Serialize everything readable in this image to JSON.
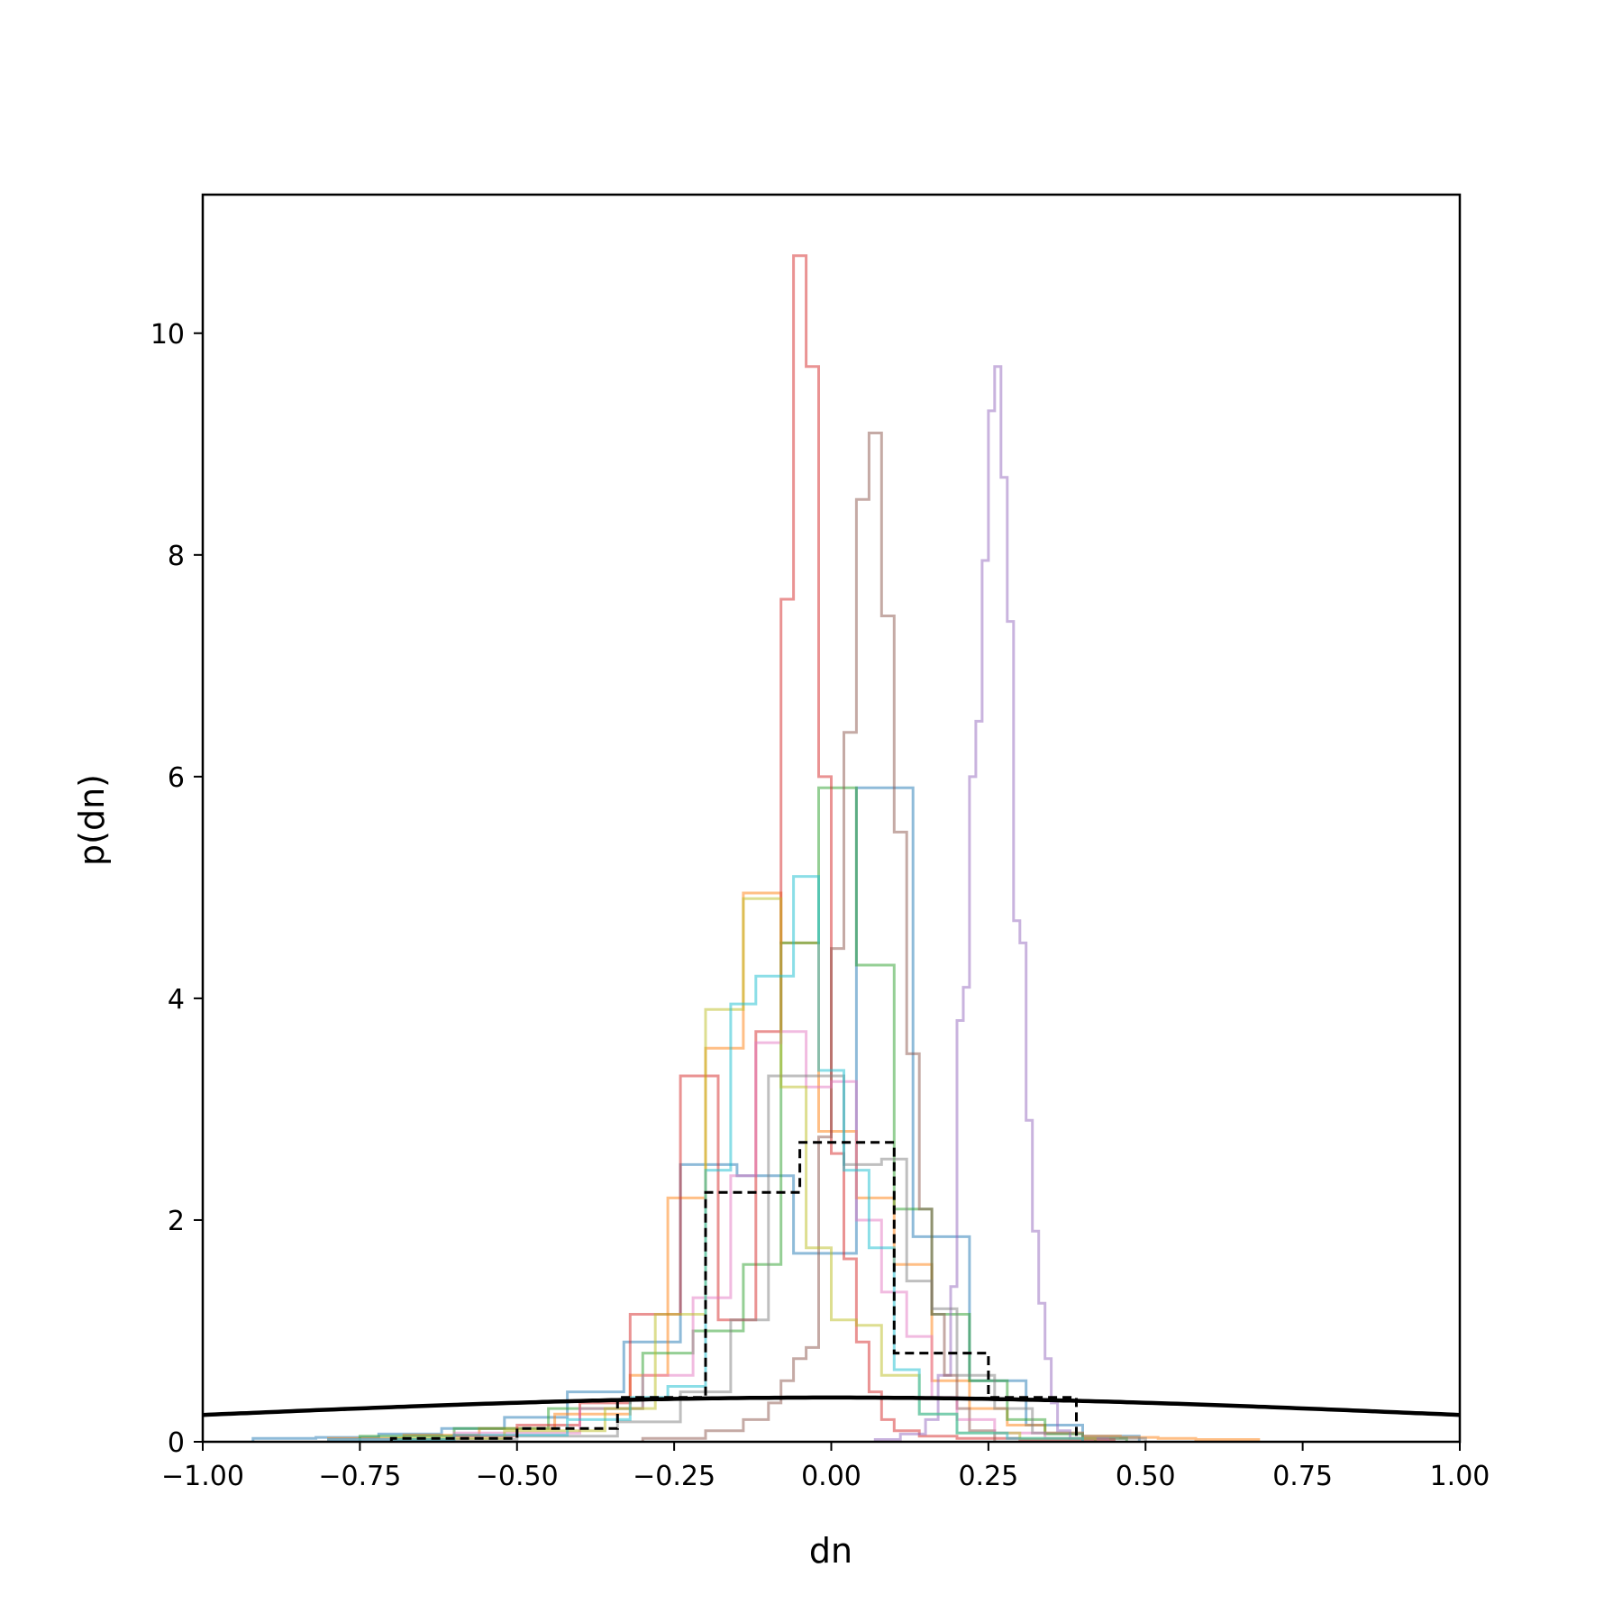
{
  "chart_data": {
    "type": "histogram",
    "xlabel": "dn",
    "ylabel": "p(dn)",
    "xlim": [
      -1.0,
      1.0
    ],
    "ylim": [
      0,
      11.25
    ],
    "grid": false,
    "legend": "none",
    "x_ticks": [
      "−1.00",
      "−0.75",
      "−0.50",
      "−0.25",
      "0.00",
      "0.25",
      "0.50",
      "0.75",
      "1.00"
    ],
    "x_tick_values": [
      -1.0,
      -0.75,
      -0.5,
      -0.25,
      0.0,
      0.25,
      0.5,
      0.75,
      1.0
    ],
    "y_ticks": [
      "0",
      "2",
      "4",
      "6",
      "8",
      "10"
    ],
    "y_tick_values": [
      0,
      2,
      4,
      6,
      8,
      10
    ],
    "series": [
      {
        "color": "#1f77b4",
        "edges": [
          -0.92,
          -0.82,
          -0.72,
          -0.62,
          -0.52,
          -0.42,
          -0.33,
          -0.24,
          -0.15,
          -0.06,
          0.04,
          0.13,
          0.22,
          0.31,
          0.4,
          0.49
        ],
        "heights": [
          0.03,
          0.04,
          0.07,
          0.12,
          0.22,
          0.45,
          0.9,
          2.5,
          2.4,
          1.7,
          5.9,
          1.85,
          0.55,
          0.15,
          0.05
        ]
      },
      {
        "color": "#ff7f0e",
        "edges": [
          -0.8,
          -0.68,
          -0.56,
          -0.44,
          -0.32,
          -0.26,
          -0.2,
          -0.14,
          -0.08,
          -0.02,
          0.04,
          0.1,
          0.16,
          0.22,
          0.28,
          0.34,
          0.4,
          0.46,
          0.52,
          0.58,
          0.68
        ],
        "heights": [
          0.03,
          0.06,
          0.12,
          0.25,
          0.6,
          2.2,
          3.55,
          4.95,
          4.5,
          2.8,
          2.2,
          1.6,
          0.55,
          0.3,
          0.15,
          0.08,
          0.05,
          0.04,
          0.03,
          0.02
        ]
      },
      {
        "color": "#2ca02c",
        "edges": [
          -0.75,
          -0.6,
          -0.45,
          -0.3,
          -0.22,
          -0.14,
          -0.08,
          -0.02,
          0.04,
          0.1,
          0.16,
          0.22,
          0.28,
          0.34,
          0.4,
          0.47
        ],
        "heights": [
          0.05,
          0.12,
          0.3,
          0.8,
          1.0,
          1.6,
          4.5,
          5.9,
          4.3,
          2.1,
          1.15,
          0.55,
          0.2,
          0.07,
          0.03
        ]
      },
      {
        "color": "#d62728",
        "edges": [
          -0.6,
          -0.5,
          -0.4,
          -0.32,
          -0.24,
          -0.18,
          -0.12,
          -0.08,
          -0.06,
          -0.04,
          -0.02,
          0.0,
          0.02,
          0.04,
          0.06,
          0.08,
          0.1,
          0.14,
          0.2,
          0.3,
          0.45
        ],
        "heights": [
          0.05,
          0.15,
          0.35,
          1.15,
          3.3,
          1.1,
          3.7,
          7.6,
          10.7,
          9.7,
          6.0,
          2.6,
          1.65,
          0.9,
          0.45,
          0.2,
          0.1,
          0.05,
          0.03,
          0.02
        ]
      },
      {
        "color": "#9467bd",
        "edges": [
          0.07,
          0.11,
          0.15,
          0.17,
          0.19,
          0.2,
          0.21,
          0.22,
          0.23,
          0.24,
          0.25,
          0.26,
          0.27,
          0.28,
          0.29,
          0.3,
          0.31,
          0.32,
          0.33,
          0.34,
          0.35,
          0.36,
          0.38,
          0.42
        ],
        "heights": [
          0.02,
          0.07,
          0.2,
          0.6,
          1.4,
          3.8,
          4.1,
          6.0,
          6.5,
          7.95,
          9.3,
          9.7,
          8.7,
          7.4,
          4.7,
          4.5,
          2.9,
          1.9,
          1.25,
          0.75,
          0.35,
          0.1,
          0.03
        ]
      },
      {
        "color": "#8c564b",
        "edges": [
          -0.3,
          -0.2,
          -0.14,
          -0.1,
          -0.08,
          -0.06,
          -0.04,
          -0.02,
          0.0,
          0.02,
          0.04,
          0.06,
          0.08,
          0.1,
          0.12,
          0.14,
          0.16,
          0.18,
          0.2,
          0.22,
          0.26
        ],
        "heights": [
          0.03,
          0.1,
          0.2,
          0.35,
          0.55,
          0.75,
          0.85,
          2.75,
          4.45,
          6.4,
          8.5,
          9.1,
          7.45,
          5.5,
          3.5,
          2.1,
          1.15,
          0.6,
          0.3,
          0.1
        ]
      },
      {
        "color": "#e377c2",
        "edges": [
          -0.8,
          -0.6,
          -0.4,
          -0.3,
          -0.22,
          -0.16,
          -0.12,
          -0.08,
          -0.04,
          0.0,
          0.04,
          0.08,
          0.12,
          0.16,
          0.2,
          0.26,
          0.34,
          0.44
        ],
        "heights": [
          0.02,
          0.08,
          0.3,
          0.6,
          1.3,
          2.4,
          3.6,
          3.7,
          3.2,
          3.25,
          2.0,
          1.35,
          0.95,
          0.4,
          0.2,
          0.08,
          0.03
        ]
      },
      {
        "color": "#7f7f7f",
        "edges": [
          -0.7,
          -0.5,
          -0.34,
          -0.24,
          -0.16,
          -0.1,
          -0.04,
          0.02,
          0.08,
          0.12,
          0.16,
          0.2,
          0.26,
          0.32,
          0.4,
          0.5
        ],
        "heights": [
          0.02,
          0.05,
          0.18,
          0.45,
          1.1,
          3.3,
          3.3,
          2.5,
          2.55,
          1.45,
          1.2,
          0.6,
          0.3,
          0.08,
          0.03
        ]
      },
      {
        "color": "#bcbd22",
        "edges": [
          -0.7,
          -0.52,
          -0.36,
          -0.28,
          -0.2,
          -0.14,
          -0.08,
          -0.04,
          0.0,
          0.04,
          0.08,
          0.14,
          0.2,
          0.3,
          0.42
        ],
        "heights": [
          0.03,
          0.1,
          0.3,
          1.15,
          3.9,
          4.9,
          3.2,
          1.75,
          1.1,
          1.05,
          0.6,
          0.25,
          0.08,
          0.03
        ]
      },
      {
        "color": "#17becf",
        "edges": [
          -0.8,
          -0.6,
          -0.42,
          -0.32,
          -0.26,
          -0.2,
          -0.16,
          -0.12,
          -0.06,
          -0.02,
          0.02,
          0.06,
          0.1,
          0.14,
          0.2,
          0.28,
          0.4
        ],
        "heights": [
          0.02,
          0.06,
          0.2,
          0.4,
          0.5,
          2.45,
          3.95,
          4.2,
          5.1,
          3.35,
          2.45,
          1.75,
          0.65,
          0.25,
          0.08,
          0.03
        ]
      }
    ],
    "combined": {
      "edges": [
        -0.7,
        -0.5,
        -0.34,
        -0.2,
        -0.05,
        0.1,
        0.25,
        0.39
      ],
      "heights": [
        0.03,
        0.12,
        0.4,
        2.25,
        2.7,
        0.8,
        0.4
      ]
    },
    "prior_curve": {
      "mean": 0.0,
      "sd": 1.0,
      "peak": 0.4
    }
  }
}
